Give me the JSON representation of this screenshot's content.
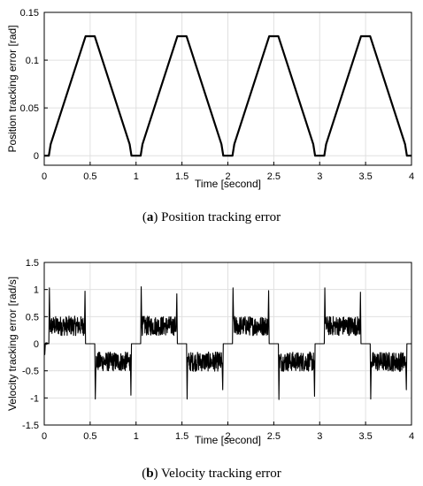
{
  "chart_data": [
    {
      "type": "line",
      "caption_letter": "a",
      "caption_text": "Position tracking error",
      "xlabel": "Time [second]",
      "ylabel": "Position tracking error [rad]",
      "xlim": [
        0,
        4
      ],
      "ylim": [
        -0.01,
        0.15
      ],
      "xticks": [
        "0",
        "0.5",
        "1",
        "1.5",
        "2",
        "2.5",
        "3",
        "3.5",
        "4"
      ],
      "yticks": [
        "0",
        "0.05",
        "0.1",
        "0.15"
      ],
      "grid": true,
      "series": [
        {
          "color": "#000000",
          "x": [
            0,
            0.05,
            0.07,
            0.45,
            0.55,
            0.93,
            0.95,
            1.05,
            1.07,
            1.45,
            1.55,
            1.93,
            1.95,
            2.05,
            2.07,
            2.45,
            2.55,
            2.93,
            2.95,
            3.05,
            3.07,
            3.45,
            3.55,
            3.93,
            3.95,
            4.0
          ],
          "y": [
            0,
            0,
            0.012,
            0.125,
            0.125,
            0.012,
            0,
            0,
            0.012,
            0.125,
            0.125,
            0.012,
            0,
            0,
            0.012,
            0.125,
            0.125,
            0.012,
            0,
            0,
            0.012,
            0.125,
            0.125,
            0.012,
            0,
            0
          ]
        }
      ]
    },
    {
      "type": "line",
      "caption_letter": "b",
      "caption_text": "Velocity tracking error",
      "xlabel": "Time [second]",
      "ylabel": "Velocity tracking error [rad/s]",
      "xlim": [
        0,
        4
      ],
      "ylim": [
        -1.5,
        1.5
      ],
      "xticks": [
        "0",
        "0.5",
        "1",
        "1.5",
        "2",
        "2.5",
        "3",
        "3.5",
        "4"
      ],
      "yticks": [
        "-1.5",
        "-1",
        "-0.5",
        "0",
        "0.5",
        "1",
        "1.5"
      ],
      "grid": true,
      "series": [
        {
          "color": "#000000",
          "segments": [
            {
              "start": 0.0,
              "end": 0.05,
              "level": 0,
              "noise": 0.02,
              "spike_start": -0.2,
              "spike_end": 0
            },
            {
              "start": 0.05,
              "end": 0.45,
              "level": 0.33,
              "noise": 0.18,
              "spike_start": 1.03,
              "spike_end": 0.97
            },
            {
              "start": 0.55,
              "end": 0.95,
              "level": -0.33,
              "noise": 0.18,
              "spike_start": -1.02,
              "spike_end": -0.95
            },
            {
              "start": 1.05,
              "end": 1.45,
              "level": 0.33,
              "noise": 0.18,
              "spike_start": 1.05,
              "spike_end": 0.92
            },
            {
              "start": 1.55,
              "end": 1.95,
              "level": -0.33,
              "noise": 0.18,
              "spike_start": -1.02,
              "spike_end": -0.85
            },
            {
              "start": 2.05,
              "end": 2.45,
              "level": 0.33,
              "noise": 0.18,
              "spike_start": 1.03,
              "spike_end": 0.98
            },
            {
              "start": 2.55,
              "end": 2.95,
              "level": -0.33,
              "noise": 0.18,
              "spike_start": -1.03,
              "spike_end": -0.97
            },
            {
              "start": 3.05,
              "end": 3.45,
              "level": 0.33,
              "noise": 0.18,
              "spike_start": 1.03,
              "spike_end": 0.95
            },
            {
              "start": 3.55,
              "end": 3.95,
              "level": -0.33,
              "noise": 0.18,
              "spike_start": -1.02,
              "spike_end": -0.85
            }
          ]
        }
      ]
    }
  ]
}
